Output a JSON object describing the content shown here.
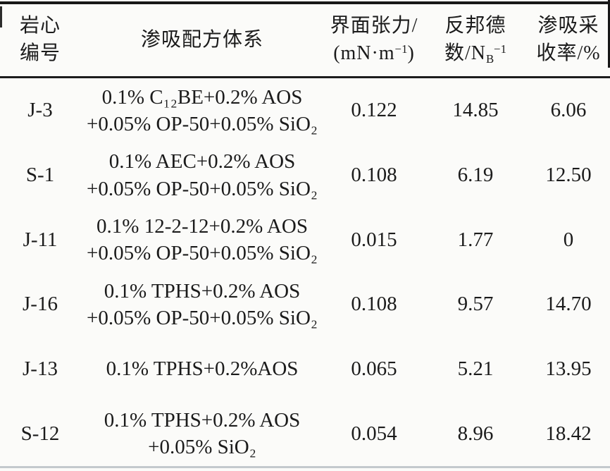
{
  "table": {
    "header": {
      "core_id_line1": "岩心",
      "core_id_line2": "编号",
      "formula_system": "渗吸配方体系",
      "ift_line1": "界面张力/",
      "ift_line2_pre": "(mN·m",
      "ift_line2_sup": "−1",
      "ift_line2_post": ")",
      "bond_line1": "反邦德",
      "bond_line2_pre": "数/N",
      "bond_line2_sub": "B",
      "bond_line2_sup": "−1",
      "recovery_line1": "渗吸采",
      "recovery_line2": "收率/%"
    },
    "rows": [
      {
        "id": "J-3",
        "formula": [
          "0.1% C₁₂BE+0.2% AOS",
          "+0.05% OP-50+0.05% SiO₂"
        ],
        "ift": "0.122",
        "bond": "14.85",
        "recovery": "6.06"
      },
      {
        "id": "S-1",
        "formula": [
          "0.1% AEC+0.2% AOS",
          "+0.05% OP-50+0.05% SiO₂"
        ],
        "ift": "0.108",
        "bond": "6.19",
        "recovery": "12.50"
      },
      {
        "id": "J-11",
        "formula": [
          "0.1% 12-2-12+0.2% AOS",
          "+0.05% OP-50+0.05% SiO₂"
        ],
        "ift": "0.015",
        "bond": "1.77",
        "recovery": "0"
      },
      {
        "id": "J-16",
        "formula": [
          "0.1% TPHS+0.2% AOS",
          "+0.05% OP-50+0.05% SiO₂"
        ],
        "ift": "0.108",
        "bond": "9.57",
        "recovery": "14.70"
      },
      {
        "id": "J-13",
        "formula": [
          "0.1% TPHS+0.2%AOS"
        ],
        "ift": "0.065",
        "bond": "5.21",
        "recovery": "13.95"
      },
      {
        "id": "S-12",
        "formula": [
          "0.1% TPHS+0.2% AOS",
          "+0.05% SiO₂"
        ],
        "ift": "0.054",
        "bond": "8.96",
        "recovery": "18.42"
      }
    ],
    "colors": {
      "rule_dark": "#181818",
      "rule_bottom_gray": "#c3c9cd",
      "text": "#1b1b1b",
      "background": "#fbfbf9"
    }
  }
}
